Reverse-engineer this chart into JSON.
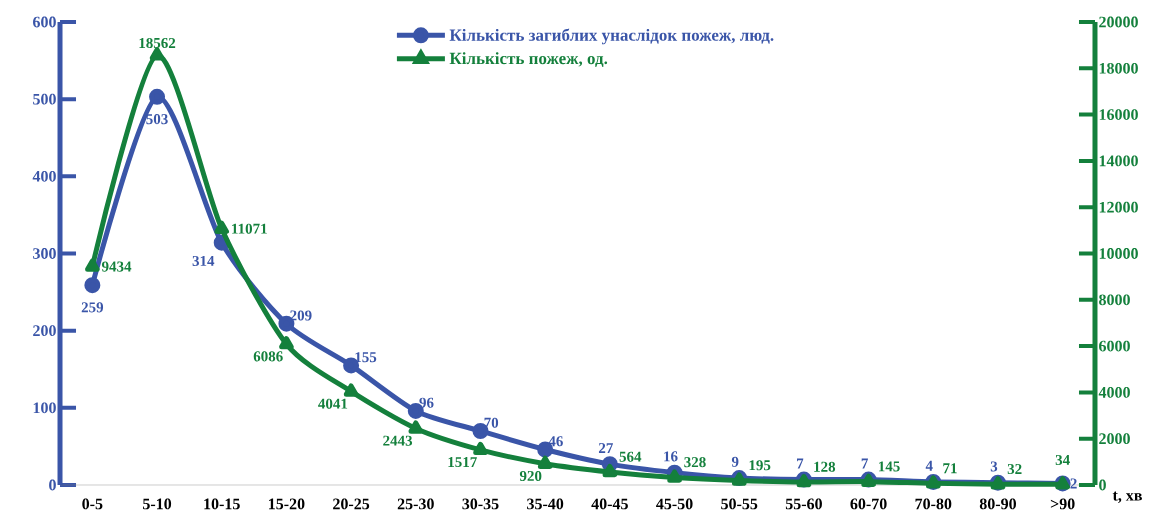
{
  "chart_data": {
    "type": "line",
    "xlabel": "t, хв",
    "categories": [
      "0-5",
      "5-10",
      "10-15",
      "15-20",
      "20-25",
      "25-30",
      "30-35",
      "35-40",
      "40-45",
      "45-50",
      "50-55",
      "55-60",
      "60-70",
      "70-80",
      "80-90",
      ">90"
    ],
    "series": [
      {
        "name": "Кількість загиблих унаслідок пожеж, люд.",
        "color": "#3a55a8",
        "marker": "circle",
        "values": [
          259,
          503,
          314,
          209,
          155,
          96,
          70,
          46,
          27,
          16,
          9,
          7,
          7,
          4,
          3,
          2
        ]
      },
      {
        "name": "Кількість пожеж, од.",
        "color": "#14803c",
        "marker": "triangle",
        "axis": "y2",
        "values": [
          9434,
          18562,
          11071,
          6086,
          4041,
          2443,
          1517,
          920,
          564,
          328,
          195,
          128,
          145,
          71,
          32,
          34
        ]
      }
    ],
    "ylim": [
      0,
      600
    ],
    "yticks": [
      0,
      100,
      200,
      300,
      400,
      500,
      600
    ],
    "y2lim": [
      0,
      20000
    ],
    "y2ticks": [
      0,
      2000,
      4000,
      6000,
      8000,
      10000,
      12000,
      14000,
      16000,
      18000,
      20000
    ],
    "data_labels": true,
    "legend": "top",
    "line_style": "solid",
    "grid": false
  }
}
